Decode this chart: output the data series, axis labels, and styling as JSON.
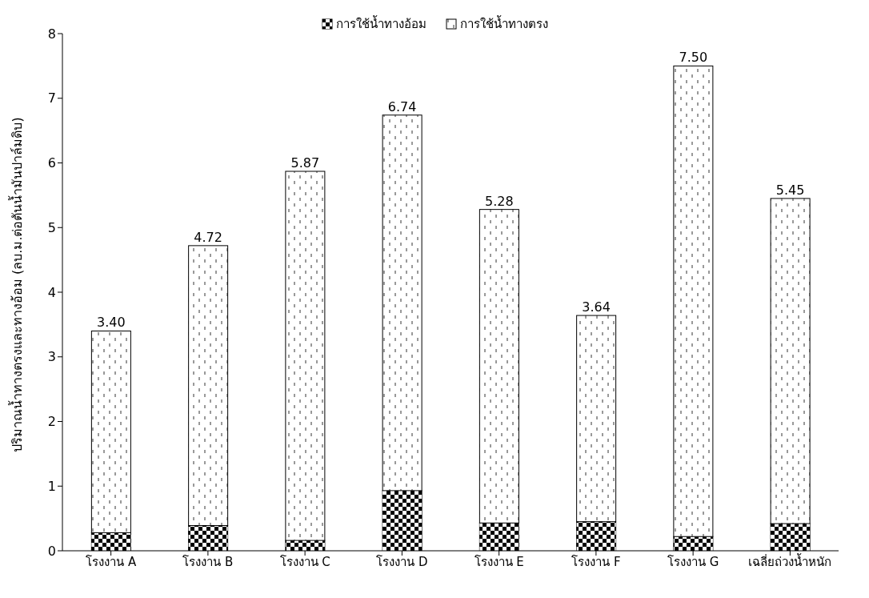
{
  "chart_data": {
    "type": "bar",
    "stacked": true,
    "ylabel": "ปริมาณน้ำทางตรงและทางอ้อม (ลบ.ม.ต่อตันน้ำมันปาล์มดิบ)",
    "categories": [
      "โรงงาน A",
      "โรงงาน B",
      "โรงงาน C",
      "โรงงาน D",
      "โรงงาน E",
      "โรงงาน F",
      "โรงงาน G",
      "เฉลี่ยถ่วงน้ำหนัก"
    ],
    "series": [
      {
        "name": "การใช้น้ำทางอ้อม",
        "color": "#000000",
        "values": [
          0.28,
          0.39,
          0.16,
          0.93,
          0.43,
          0.45,
          0.22,
          0.42
        ]
      },
      {
        "name": "การใช้น้ำทางตรง",
        "color": "#ffffff",
        "values": [
          3.12,
          4.33,
          5.71,
          5.81,
          4.85,
          3.19,
          7.28,
          5.03
        ]
      }
    ],
    "totals": [
      "3.40",
      "4.72",
      "5.87",
      "6.74",
      "5.28",
      "3.64",
      "7.50",
      "5.45"
    ],
    "ylim": [
      0,
      8
    ],
    "yticks": [
      0,
      1,
      2,
      3,
      4,
      5,
      6,
      7,
      8
    ],
    "grid": false,
    "legend": "top"
  }
}
